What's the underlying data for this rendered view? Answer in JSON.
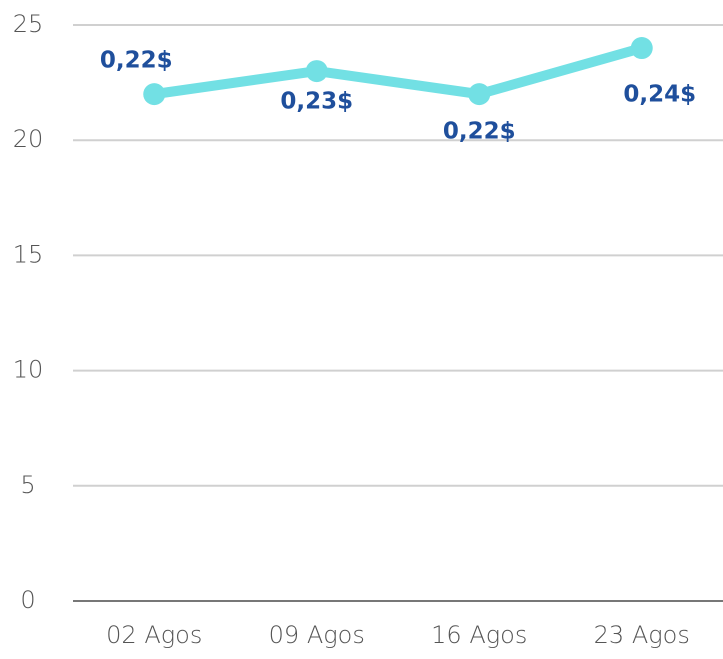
{
  "chart_data": {
    "type": "line",
    "categories": [
      "02 Agos",
      "09 Agos",
      "16 Agos",
      "23 Agos"
    ],
    "series": [
      {
        "color": "#72e0e4",
        "values": [
          22,
          23,
          22,
          24
        ],
        "value_labels": [
          "0,22$",
          "0,23$",
          "0,22$",
          "0,24$"
        ]
      }
    ],
    "ylim": [
      0,
      25
    ],
    "yticks": [
      0,
      5,
      10,
      15,
      20,
      25
    ],
    "grid": true
  }
}
